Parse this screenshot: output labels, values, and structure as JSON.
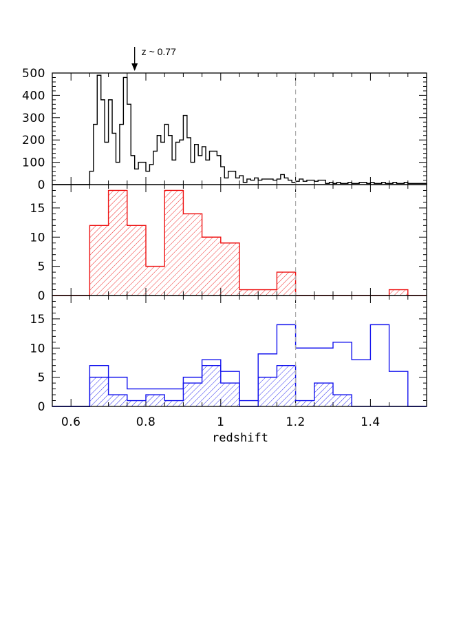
{
  "chart_data": {
    "type": "histogram",
    "xlabel": "redshift",
    "xlim": [
      0.55,
      1.55
    ],
    "x_ticks": [
      "0.6",
      "0.8",
      "1",
      "1.2",
      "1.4"
    ],
    "reference_line_x": 1.2,
    "annotation": {
      "text": "z ~ 0.77",
      "x": 0.77
    },
    "colors": {
      "panel1": "#000000",
      "panel2": "#ee1111",
      "panel3": "#1111ee",
      "reference": "#aaaaaa"
    },
    "panels": [
      {
        "ylim": [
          0,
          500
        ],
        "y_ticks": [
          "0",
          "100",
          "200",
          "300",
          "400",
          "500"
        ],
        "series": [
          {
            "style": "step",
            "x_start": 0.55,
            "bin_width": 0.01,
            "values": [
              0,
              0,
              0,
              0,
              0,
              0,
              0,
              0,
              0,
              0,
              60,
              270,
              490,
              380,
              190,
              380,
              230,
              100,
              270,
              480,
              360,
              130,
              70,
              100,
              100,
              60,
              90,
              150,
              220,
              190,
              270,
              220,
              110,
              190,
              200,
              310,
              210,
              100,
              180,
              130,
              170,
              110,
              150,
              150,
              130,
              80,
              30,
              60,
              60,
              30,
              40,
              10,
              25,
              20,
              30,
              20,
              25,
              25,
              25,
              20,
              25,
              45,
              30,
              20,
              10,
              15,
              25,
              15,
              20,
              20,
              15,
              20,
              20,
              5,
              10,
              5,
              10,
              5,
              5,
              10,
              5,
              5,
              10,
              10,
              5,
              10,
              5,
              5,
              10,
              5,
              5,
              10,
              5,
              5,
              10,
              5,
              5,
              5,
              5,
              5
            ]
          }
        ]
      },
      {
        "ylim": [
          0,
          19
        ],
        "y_ticks": [
          "0",
          "5",
          "10",
          "15"
        ],
        "series": [
          {
            "style": "hatched",
            "bin_edges": [
              0.55,
              0.6,
              0.65,
              0.7,
              0.75,
              0.8,
              0.85,
              0.9,
              0.95,
              1.0,
              1.05,
              1.1,
              1.15,
              1.2,
              1.25,
              1.3,
              1.35,
              1.4,
              1.45,
              1.5,
              1.55
            ],
            "values": [
              0,
              0,
              12,
              18,
              12,
              5,
              18,
              14,
              10,
              9,
              1,
              1,
              4,
              0,
              0,
              0,
              0,
              0,
              1,
              0
            ]
          }
        ]
      },
      {
        "ylim": [
          0,
          19
        ],
        "y_ticks": [
          "0",
          "5",
          "10",
          "15"
        ],
        "series": [
          {
            "style": "step",
            "bin_edges": [
              0.55,
              0.6,
              0.65,
              0.7,
              0.75,
              0.8,
              0.85,
              0.9,
              0.95,
              1.0,
              1.05,
              1.1,
              1.15,
              1.2,
              1.25,
              1.3,
              1.35,
              1.4,
              1.45,
              1.5,
              1.55
            ],
            "values": [
              0,
              0,
              7,
              5,
              3,
              3,
              3,
              5,
              8,
              6,
              1,
              9,
              14,
              10,
              10,
              11,
              8,
              14,
              6,
              0
            ]
          },
          {
            "style": "hatched",
            "bin_edges": [
              0.55,
              0.6,
              0.65,
              0.7,
              0.75,
              0.8,
              0.85,
              0.9,
              0.95,
              1.0,
              1.05,
              1.1,
              1.15,
              1.2,
              1.25,
              1.3,
              1.35,
              1.4,
              1.45,
              1.5,
              1.55
            ],
            "values": [
              0,
              0,
              5,
              2,
              1,
              2,
              1,
              4,
              7,
              4,
              0,
              5,
              7,
              1,
              4,
              2,
              0,
              0,
              0,
              0
            ]
          }
        ]
      }
    ]
  }
}
